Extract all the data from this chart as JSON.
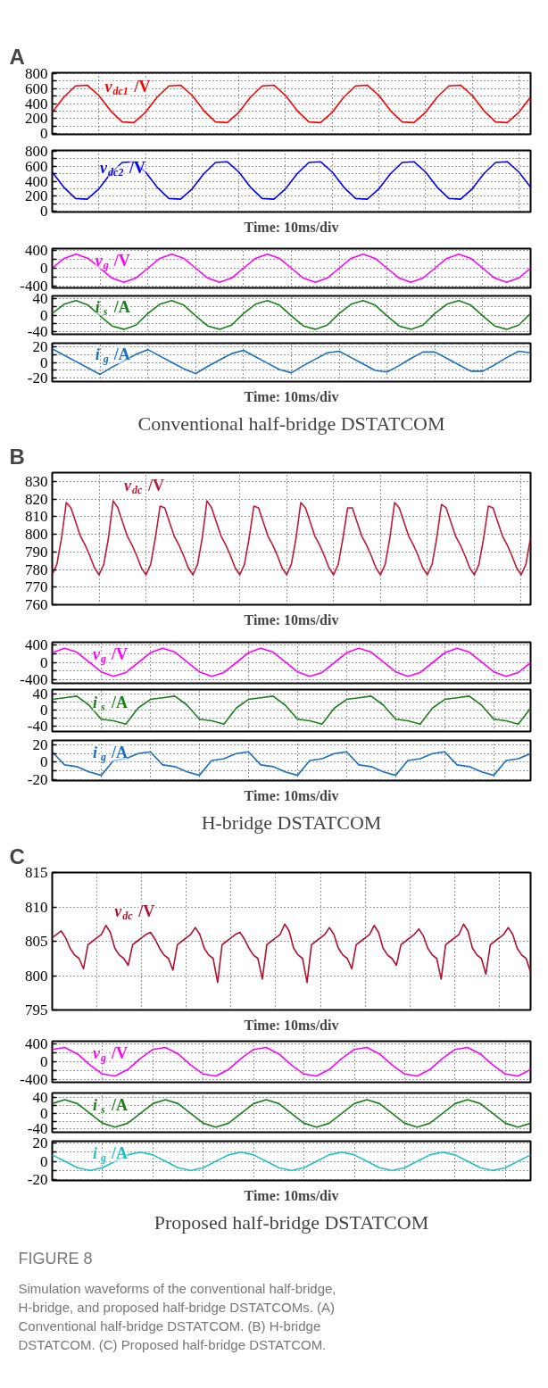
{
  "chart_data": [
    {
      "type": "line",
      "title": "A",
      "tick_labels": "y",
      "grid": true,
      "categories": [
        null,
        null,
        null,
        null,
        null,
        null,
        null,
        null,
        null,
        null,
        null,
        null,
        null,
        null,
        null,
        null,
        null,
        null,
        null,
        null,
        null,
        null,
        null,
        null,
        null,
        null,
        null,
        null,
        null,
        null,
        null,
        null,
        null,
        null,
        null,
        null,
        null,
        null,
        null,
        null,
        null,
        null
      ],
      "ylim": [
        -10,
        810
      ],
      "yticks": [
        0,
        {
          "value": 100,
          "label": null
        },
        200,
        {
          "value": 300,
          "label": null
        },
        400,
        {
          "value": 500,
          "label": null
        },
        600,
        {
          "value": 700,
          "label": null
        },
        800
      ],
      "series": [
        {
          "name": "v$_{dc1}$ /V",
          "color": "#ff0000",
          "values": [
            283,
            486,
            635,
            644,
            507,
            304,
            155,
            146,
            283,
            486,
            635,
            644,
            507,
            304,
            155,
            146,
            283,
            486,
            635,
            644,
            507,
            304,
            155,
            146,
            283,
            486,
            635,
            644,
            507,
            304,
            155,
            146,
            283,
            486,
            635,
            644,
            507,
            304,
            155,
            146,
            283,
            486
          ]
        }
      ]
    },
    {
      "type": "line",
      "xlabel": "Time: 10ms/div",
      "tick_labels": "y",
      "grid": true,
      "categories": [
        null,
        null,
        null,
        null,
        null,
        null,
        null,
        null,
        null,
        null,
        null,
        null,
        null,
        null,
        null,
        null,
        null,
        null,
        null,
        null,
        null,
        null,
        null,
        null,
        null,
        null,
        null,
        null,
        null,
        null,
        null,
        null,
        null,
        null,
        null,
        null,
        null,
        null,
        null,
        null,
        null,
        null
      ],
      "ylim": [
        -10,
        810
      ],
      "yticks": [
        0,
        {
          "value": 100,
          "label": null
        },
        200,
        {
          "value": 300,
          "label": null
        },
        400,
        {
          "value": 500,
          "label": null
        },
        600,
        {
          "value": 700,
          "label": null
        },
        800
      ],
      "series": [
        {
          "name": "v$_{dc2}$ /V",
          "color": "#0000ff",
          "values": [
            522,
            319,
            170,
            161,
            298,
            501,
            650,
            659,
            522,
            319,
            170,
            161,
            298,
            501,
            650,
            659,
            522,
            319,
            170,
            161,
            298,
            501,
            650,
            659,
            522,
            319,
            170,
            161,
            298,
            501,
            650,
            659,
            522,
            319,
            170,
            161,
            298,
            501,
            650,
            659,
            522,
            319
          ]
        }
      ]
    },
    {
      "type": "line",
      "tick_labels": "y",
      "grid": true,
      "categories": [
        null,
        null,
        null,
        null,
        null,
        null,
        null,
        null,
        null,
        null,
        null,
        null,
        null,
        null,
        null,
        null,
        null,
        null,
        null,
        null,
        null,
        null,
        null,
        null,
        null,
        null,
        null,
        null,
        null,
        null,
        null,
        null,
        null,
        null,
        null,
        null,
        null,
        null,
        null,
        null,
        null
      ],
      "ylim": [
        -450,
        450
      ],
      "yticks": [
        -400,
        {
          "value": -200,
          "label": null
        },
        0,
        {
          "value": 200,
          "label": null
        },
        400
      ],
      "series": [
        {
          "name": "v$_{g}$ /V",
          "color": "#ff00ff",
          "values": [
            0,
            226,
            320,
            226,
            0,
            -226,
            -320,
            -226,
            0,
            226,
            320,
            226,
            0,
            -226,
            -320,
            -226,
            0,
            226,
            320,
            226,
            0,
            -226,
            -320,
            -226,
            0,
            226,
            320,
            226,
            0,
            -226,
            -320,
            -226,
            0,
            226,
            320,
            226,
            0,
            -226,
            -320,
            -226,
            0
          ]
        }
      ]
    },
    {
      "type": "line",
      "tick_labels": "y",
      "grid": true,
      "categories": [
        null,
        null,
        null,
        null,
        null,
        null,
        null,
        null,
        null,
        null,
        null,
        null,
        null,
        null,
        null,
        null,
        null,
        null,
        null,
        null,
        null,
        null,
        null,
        null,
        null,
        null,
        null,
        null,
        null,
        null,
        null,
        null,
        null,
        null,
        null,
        null,
        null,
        null,
        null,
        null,
        null
      ],
      "ylim": [
        -46,
        46
      ],
      "yticks": [
        -40,
        {
          "value": -20,
          "label": null
        },
        0,
        {
          "value": 20,
          "label": null
        },
        40
      ],
      "series": [
        {
          "name": "i$_{s}$ /A",
          "color": "#1a801a",
          "values": [
            4,
            26,
            35,
            24,
            -2,
            -26,
            -34,
            -24,
            4,
            26,
            35,
            24,
            -2,
            -26,
            -34,
            -24,
            4,
            26,
            35,
            24,
            -2,
            -26,
            -34,
            -24,
            4,
            26,
            35,
            24,
            -2,
            -26,
            -34,
            -24,
            4,
            26,
            35,
            24,
            -2,
            -26,
            -34,
            -24,
            4
          ]
        }
      ]
    },
    {
      "type": "line",
      "xlabel": "Time: 10ms/div",
      "annotations": [
        "Conventional half-bridge DSTATCOM"
      ],
      "tick_labels": "y",
      "grid": true,
      "categories": [
        null,
        null,
        null,
        null,
        null,
        null,
        null,
        null,
        null,
        null,
        null,
        null,
        null,
        null,
        null,
        null,
        null,
        null,
        null,
        null,
        null,
        null,
        null,
        null,
        null,
        null,
        null,
        null,
        null,
        null,
        null,
        null,
        null,
        null,
        null,
        null,
        null,
        null,
        null,
        null,
        null
      ],
      "ylim": [
        -24,
        24
      ],
      "yticks": [
        -20,
        {
          "value": -10,
          "label": null
        },
        0,
        {
          "value": 10,
          "label": null
        },
        20
      ],
      "series": [
        {
          "name": "i$_{g}$ /A",
          "color": "#1a6fc4",
          "values": [
            17,
            9,
            1,
            -7,
            -15,
            -6,
            2,
            10,
            16,
            8,
            0,
            -8,
            -14,
            -5,
            3,
            11,
            15,
            7,
            -1,
            -9,
            -13,
            -4,
            4,
            12,
            14,
            6,
            -2,
            -10,
            -12,
            -4,
            5,
            13,
            13,
            5,
            -3,
            -11,
            -11,
            -3,
            6,
            14,
            12
          ]
        }
      ]
    },
    {
      "type": "line",
      "title": "B",
      "xlabel": "Time: 10ms/div",
      "tick_labels": "y",
      "grid": true,
      "categories": [
        null,
        null,
        null,
        null,
        null,
        null,
        null,
        null,
        null,
        null,
        null,
        null,
        null,
        null,
        null,
        null,
        null,
        null,
        null,
        null,
        null,
        null,
        null,
        null,
        null,
        null,
        null,
        null,
        null,
        null,
        null,
        null,
        null,
        null,
        null,
        null,
        null,
        null,
        null,
        null,
        null,
        null,
        null,
        null,
        null,
        null,
        null,
        null,
        null,
        null,
        null,
        null,
        null,
        null,
        null,
        null,
        null,
        null,
        null,
        null,
        null,
        null,
        null,
        null,
        null,
        null,
        null,
        null,
        null,
        null,
        null,
        null,
        null,
        null,
        null,
        null,
        null,
        null,
        null,
        null,
        null,
        null,
        null,
        null,
        null,
        null,
        null,
        null,
        null,
        null,
        null,
        null,
        null,
        null,
        null,
        null,
        null,
        null,
        null,
        null,
        null,
        null,
        null
      ],
      "ylim": [
        760,
        835
      ],
      "yticks": [
        760,
        770,
        780,
        790,
        800,
        810,
        820,
        830
      ],
      "series": [
        {
          "name": "v$_{dc}$ /V",
          "color": "#c01838",
          "values": [
            777,
            783,
            798,
            818,
            815,
            807,
            799,
            794,
            788,
            781,
            777,
            783,
            798,
            819,
            815,
            807,
            799,
            794,
            788,
            781,
            777,
            783,
            798,
            816,
            815,
            807,
            799,
            794,
            788,
            781,
            777,
            783,
            798,
            819,
            815,
            807,
            799,
            794,
            788,
            781,
            777,
            783,
            798,
            816,
            815,
            807,
            799,
            794,
            788,
            781,
            777,
            783,
            798,
            818,
            815,
            807,
            799,
            794,
            788,
            781,
            777,
            783,
            798,
            815,
            815,
            807,
            799,
            794,
            788,
            781,
            777,
            783,
            798,
            818,
            815,
            807,
            799,
            794,
            788,
            781,
            777,
            783,
            798,
            817,
            815,
            807,
            799,
            794,
            788,
            781,
            777,
            783,
            798,
            816,
            815,
            807,
            799,
            794,
            788,
            781,
            777,
            783,
            798
          ]
        }
      ]
    },
    {
      "type": "line",
      "tick_labels": "y",
      "grid": true,
      "categories": [
        null,
        null,
        null,
        null,
        null,
        null,
        null,
        null,
        null,
        null,
        null,
        null,
        null,
        null,
        null,
        null,
        null,
        null,
        null,
        null,
        null,
        null,
        null,
        null,
        null,
        null,
        null,
        null,
        null,
        null,
        null,
        null,
        null,
        null,
        null,
        null,
        null,
        null,
        null,
        null
      ],
      "ylim": [
        -480,
        460
      ],
      "yticks": [
        -400,
        {
          "value": -200,
          "label": null
        },
        0,
        {
          "value": 200,
          "label": null
        },
        400
      ],
      "series": [
        {
          "name": "v$_{g}$ /V",
          "color": "#ff00ff",
          "values": [
            219,
            320,
            233,
            10,
            -219,
            -320,
            -233,
            -10,
            219,
            320,
            233,
            10,
            -219,
            -320,
            -233,
            -10,
            219,
            320,
            233,
            10,
            -219,
            -320,
            -233,
            -10,
            219,
            320,
            233,
            10,
            -219,
            -320,
            -233,
            -10,
            219,
            320,
            233,
            10,
            -219,
            -320,
            -233,
            -10
          ]
        }
      ]
    },
    {
      "type": "line",
      "tick_labels": "y",
      "grid": true,
      "categories": [
        null,
        null,
        null,
        null,
        null,
        null,
        null,
        null,
        null,
        null,
        null,
        null,
        null,
        null,
        null,
        null,
        null,
        null,
        null,
        null,
        null,
        null,
        null,
        null,
        null,
        null,
        null,
        null,
        null,
        null,
        null,
        null,
        null,
        null,
        null,
        null,
        null,
        null,
        null,
        null
      ],
      "ylim": [
        -52,
        50
      ],
      "yticks": [
        -40,
        {
          "value": -20,
          "label": null
        },
        0,
        {
          "value": 20,
          "label": null
        },
        40
      ],
      "series": [
        {
          "name": "i$_{s}$ /A",
          "color": "#1a801a",
          "values": [
            26,
            30,
            34,
            12,
            -22,
            -26,
            -34,
            5,
            26,
            30,
            34,
            12,
            -22,
            -26,
            -34,
            5,
            26,
            30,
            34,
            12,
            -22,
            -26,
            -34,
            5,
            26,
            30,
            34,
            12,
            -22,
            -26,
            -34,
            5,
            26,
            30,
            34,
            12,
            -22,
            -26,
            -34,
            5
          ]
        }
      ]
    },
    {
      "type": "line",
      "xlabel": "Time: 10ms/div",
      "annotations": [
        "H-bridge DSTATCOM"
      ],
      "tick_labels": "y",
      "grid": true,
      "categories": [
        null,
        null,
        null,
        null,
        null,
        null,
        null,
        null,
        null,
        null,
        null,
        null,
        null,
        null,
        null,
        null,
        null,
        null,
        null,
        null,
        null,
        null,
        null,
        null,
        null,
        null,
        null,
        null,
        null,
        null,
        null,
        null,
        null,
        null,
        null,
        null,
        null,
        null,
        null,
        null
      ],
      "ylim": [
        -21,
        25
      ],
      "yticks": [
        -20,
        {
          "value": -10,
          "label": null
        },
        0,
        {
          "value": 10,
          "label": null
        },
        20
      ],
      "series": [
        {
          "name": "i$_{g}$ /A",
          "color": "#1a6fc4",
          "values": [
            12,
            -3,
            -5,
            -11,
            -15,
            2,
            4,
            10,
            12,
            -3,
            -5,
            -11,
            -15,
            2,
            4,
            10,
            12,
            -3,
            -5,
            -11,
            -15,
            2,
            4,
            10,
            12,
            -3,
            -5,
            -11,
            -15,
            2,
            4,
            10,
            12,
            -3,
            -5,
            -11,
            -15,
            2,
            4,
            10
          ]
        }
      ]
    },
    {
      "type": "line",
      "title": "C",
      "xlabel": "Time: 10ms/div",
      "tick_labels": "y",
      "grid": true,
      "categories": [
        null,
        null,
        null,
        null,
        null,
        null,
        null,
        null,
        null,
        null,
        null,
        null,
        null,
        null,
        null,
        null,
        null,
        null,
        null,
        null,
        null,
        null,
        null,
        null,
        null,
        null,
        null,
        null,
        null,
        null,
        null,
        null,
        null,
        null,
        null,
        null,
        null,
        null,
        null,
        null,
        null,
        null,
        null,
        null,
        null,
        null,
        null,
        null,
        null,
        null,
        null,
        null,
        null,
        null,
        null,
        null,
        null,
        null,
        null,
        null,
        null,
        null,
        null,
        null,
        null,
        null,
        null,
        null,
        null,
        null,
        null,
        null,
        null,
        null,
        null,
        null,
        null,
        null,
        null,
        null,
        null,
        null,
        null,
        null,
        null,
        null,
        null,
        null,
        null,
        null,
        null,
        null,
        null,
        null,
        null,
        null,
        null,
        null,
        null,
        null,
        null,
        null,
        null,
        null,
        null,
        null,
        null,
        null
      ],
      "ylim": [
        795,
        815
      ],
      "yticks": [
        795,
        800,
        805,
        810,
        815
      ],
      "series": [
        {
          "name": "v$_{dc}$ /V",
          "color": "#b01030",
          "values": [
            805.5,
            806,
            806.5,
            805.5,
            804,
            803,
            802.5,
            801,
            804.5,
            805,
            805.5,
            806,
            807.3,
            806.3,
            804,
            803,
            802.5,
            801.5,
            804.5,
            805,
            805.5,
            806,
            806.3,
            805.3,
            804,
            803,
            802.5,
            800.8,
            804.5,
            805,
            805.5,
            806,
            807,
            806,
            804,
            803,
            802.5,
            799,
            804.5,
            805,
            805.5,
            806,
            806.3,
            805.3,
            804,
            803,
            802.5,
            799.5,
            804.5,
            805,
            805.5,
            806,
            807.5,
            806.5,
            804,
            803,
            802.5,
            799,
            804.5,
            805,
            805.5,
            806,
            807,
            806,
            804,
            803,
            802.5,
            801,
            804.5,
            805,
            805.5,
            806,
            807.3,
            806.3,
            804,
            803,
            802.5,
            801.5,
            804.5,
            805,
            805.5,
            806,
            806.8,
            805.8,
            804,
            803,
            802.5,
            799.5,
            804.5,
            805,
            805.5,
            806,
            807.5,
            806.5,
            804,
            803,
            802.5,
            800.2,
            804.5,
            805,
            805.5,
            806,
            807,
            806,
            804,
            803,
            802.5,
            800.5
          ]
        }
      ]
    },
    {
      "type": "line",
      "tick_labels": "y",
      "grid": true,
      "categories": [
        null,
        null,
        null,
        null,
        null,
        null,
        null,
        null,
        null,
        null,
        null,
        null,
        null,
        null,
        null,
        null,
        null,
        null,
        null,
        null,
        null,
        null,
        null,
        null,
        null,
        null,
        null,
        null,
        null,
        null,
        null,
        null,
        null,
        null,
        null,
        null,
        null,
        null,
        null
      ],
      "ylim": [
        -450,
        450
      ],
      "yticks": [
        -400,
        {
          "value": -200,
          "label": null
        },
        0,
        {
          "value": 200,
          "label": null
        },
        400
      ],
      "series": [
        {
          "name": "v$_{g}$ /V",
          "color": "#ff00ff",
          "values": [
            270,
            312,
            172,
            -70,
            -270,
            -312,
            -172,
            70,
            270,
            312,
            172,
            -70,
            -270,
            -312,
            -172,
            70,
            270,
            312,
            172,
            -70,
            -270,
            -312,
            -172,
            70,
            270,
            312,
            172,
            -70,
            -270,
            -312,
            -172,
            70,
            270,
            312,
            172,
            -70,
            -270,
            -312,
            -172
          ]
        }
      ]
    },
    {
      "type": "line",
      "tick_labels": "y",
      "grid": true,
      "categories": [
        null,
        null,
        null,
        null,
        null,
        null,
        null,
        null,
        null,
        null,
        null,
        null,
        null,
        null,
        null,
        null,
        null,
        null,
        null,
        null,
        null,
        null,
        null,
        null,
        null,
        null,
        null,
        null,
        null,
        null,
        null,
        null,
        null,
        null,
        null,
        null,
        null,
        null,
        null
      ],
      "ylim": [
        -48,
        52
      ],
      "yticks": [
        -40,
        {
          "value": -20,
          "label": null
        },
        0,
        {
          "value": 20,
          "label": null
        },
        40
      ],
      "series": [
        {
          "name": "i$_{s}$ /A",
          "color": "#1a801a",
          "values": [
            25,
            35,
            25,
            0,
            -25,
            -35,
            -25,
            0,
            25,
            35,
            25,
            0,
            -25,
            -35,
            -25,
            0,
            25,
            35,
            25,
            0,
            -25,
            -35,
            -25,
            0,
            25,
            35,
            25,
            0,
            -25,
            -35,
            -25,
            0,
            25,
            35,
            25,
            0,
            -25,
            -35,
            -25
          ]
        }
      ]
    },
    {
      "type": "line",
      "xlabel": "Time: 10ms/div",
      "annotations": [
        "Proposed half-bridge DSTATCOM",
        "FIGURE 8",
        "Simulation waveforms of the conventional half-bridge, H-bridge, and proposed half-bridge DSTATCOMs. (A) Conventional half-bridge DSTATCOM. (B) H-bridge DSTATCOM. (C) Proposed half-bridge DSTATCOM."
      ],
      "tick_labels": "y",
      "grid": true,
      "categories": [
        null,
        null,
        null,
        null,
        null,
        null,
        null,
        null,
        null,
        null,
        null,
        null,
        null,
        null,
        null,
        null,
        null,
        null,
        null,
        null,
        null,
        null,
        null,
        null,
        null,
        null,
        null,
        null,
        null,
        null,
        null,
        null,
        null,
        null,
        null,
        null,
        null,
        null,
        null
      ],
      "ylim": [
        -21,
        22
      ],
      "yticks": [
        -20,
        {
          "value": -10,
          "label": null
        },
        0,
        {
          "value": 10,
          "label": null
        },
        20
      ],
      "series": [
        {
          "name": "i$_{g}$ /A",
          "color": "#1fc0c8",
          "values": [
            7,
            0,
            -7,
            -10,
            -7,
            0,
            7,
            10,
            7,
            0,
            -7,
            -10,
            -7,
            0,
            7,
            10,
            7,
            0,
            -7,
            -10,
            -7,
            0,
            7,
            10,
            7,
            0,
            -7,
            -10,
            -7,
            0,
            7,
            10,
            7,
            0,
            -7,
            -10,
            -7,
            0,
            7
          ]
        }
      ]
    }
  ]
}
